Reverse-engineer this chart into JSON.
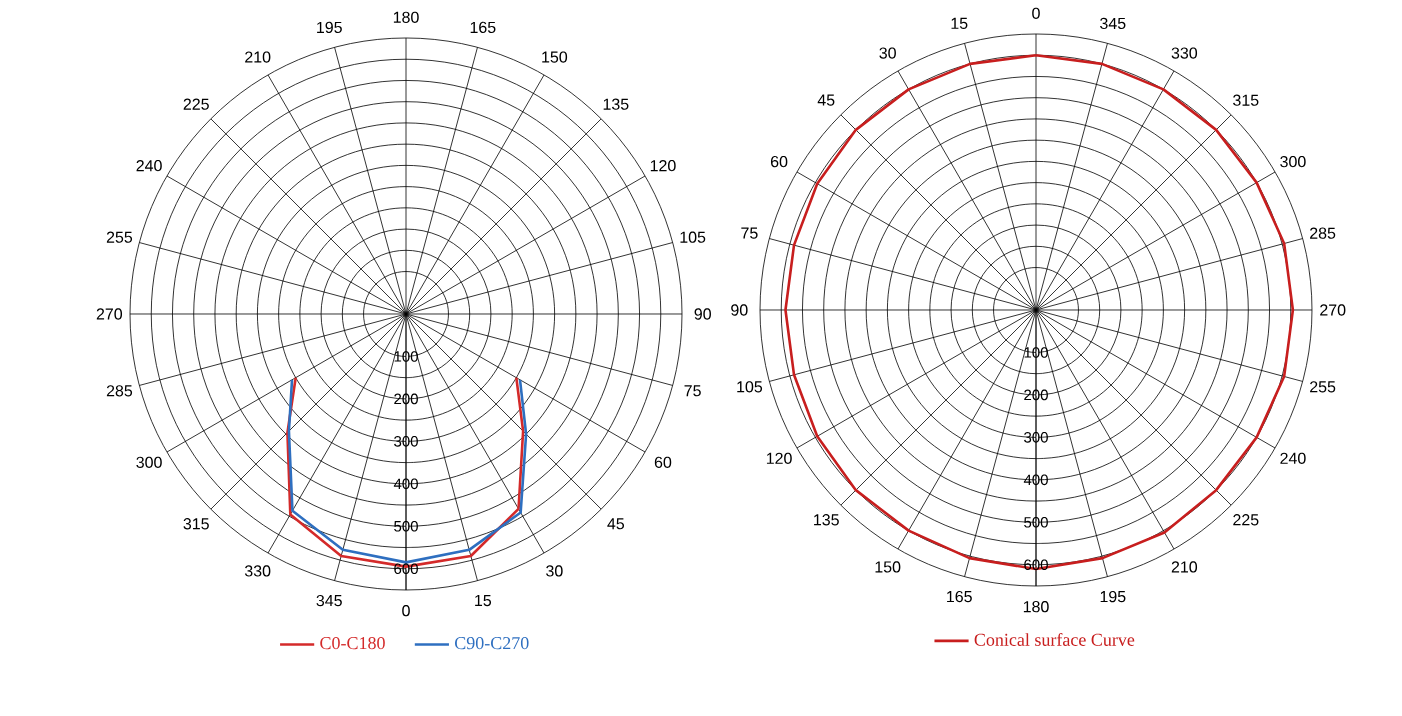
{
  "chart_data": [
    {
      "type": "radar",
      "categories": [
        "180",
        "165",
        "150",
        "135",
        "120",
        "105",
        "90",
        "75",
        "60",
        "45",
        "30",
        "15",
        "0",
        "345",
        "330",
        "315",
        "300",
        "285",
        "270",
        "255",
        "240",
        "225",
        "210",
        "195"
      ],
      "series": [
        {
          "name": "C0-C180",
          "color": "#d42a2a",
          "values": [
            null,
            null,
            null,
            null,
            null,
            null,
            null,
            null,
            300,
            390,
            530,
            590,
            595,
            590,
            545,
            395,
            300,
            null,
            null,
            null,
            null,
            null,
            null,
            null
          ]
        },
        {
          "name": "C90-C270",
          "color": "#2e6fc0",
          "values": [
            null,
            null,
            null,
            null,
            null,
            null,
            null,
            null,
            310,
            400,
            540,
            575,
            585,
            575,
            535,
            390,
            310,
            null,
            null,
            null,
            null,
            null,
            null,
            null
          ]
        }
      ],
      "ylim": [
        0,
        650
      ],
      "yticks": [
        100,
        200,
        300,
        400,
        500,
        600
      ],
      "grid": true,
      "legend": "bottom"
    },
    {
      "type": "radar",
      "categories": [
        "0",
        "345",
        "330",
        "315",
        "300",
        "285",
        "270",
        "255",
        "240",
        "225",
        "210",
        "195",
        "180",
        "165",
        "150",
        "135",
        "120",
        "105",
        "90",
        "75",
        "60",
        "45",
        "30",
        "15"
      ],
      "series": [
        {
          "name": "Conical surface Curve",
          "color": "#c81e1e",
          "values": [
            600,
            600,
            600,
            600,
            600,
            605,
            605,
            605,
            600,
            600,
            605,
            605,
            610,
            605,
            600,
            600,
            595,
            590,
            590,
            590,
            595,
            600,
            600,
            600
          ]
        }
      ],
      "ylim": [
        0,
        650
      ],
      "yticks": [
        100,
        200,
        300,
        400,
        500,
        600
      ],
      "grid": true,
      "legend": "bottom"
    }
  ]
}
